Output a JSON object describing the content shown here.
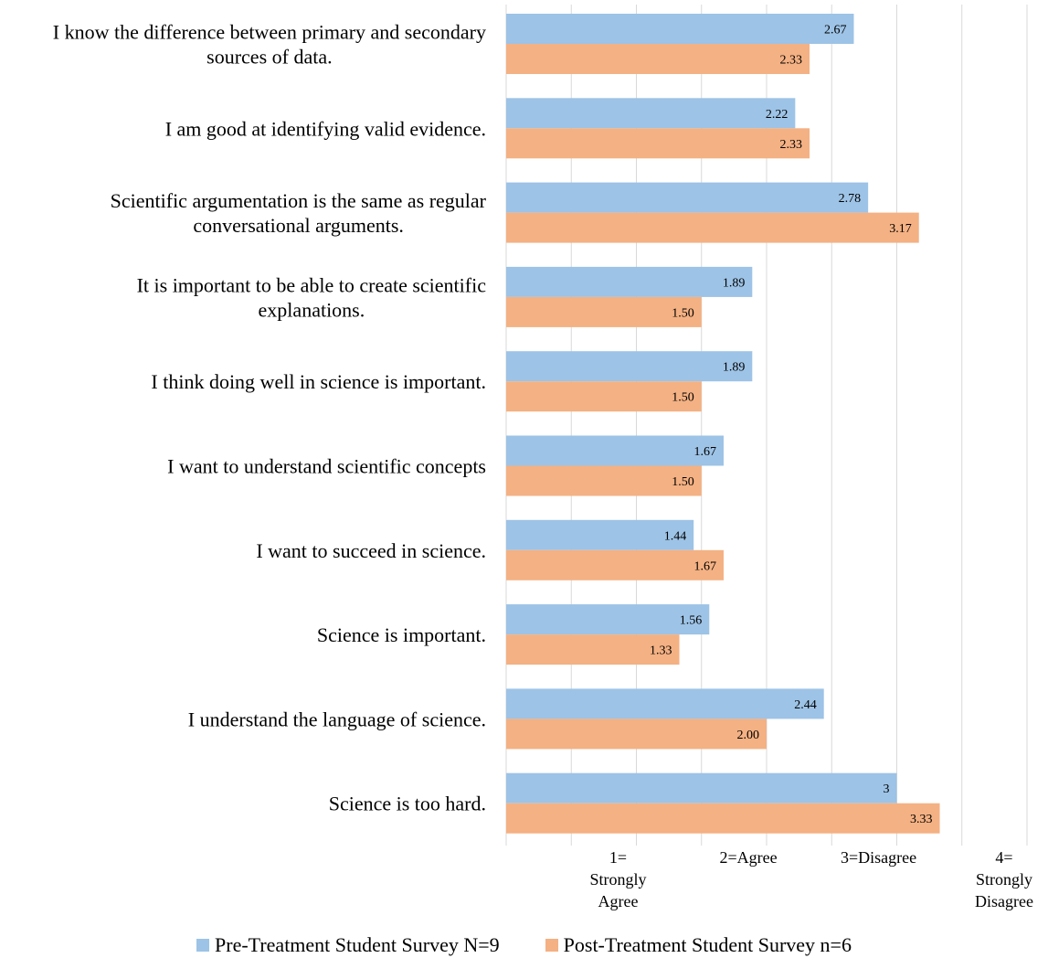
{
  "chart_data": {
    "type": "bar",
    "orientation": "horizontal",
    "categories": [
      "I know the difference between primary and secondary sources of data.",
      "I am good at identifying valid evidence.",
      "Scientific argumentation is the same as regular conversational arguments.",
      "It is important to be able to create scientific explanations.",
      "I think doing well in science is important.",
      "I want to understand scientific concepts",
      "I want to succeed in science.",
      "Science is important.",
      "I understand the language of science.",
      "Science is too hard."
    ],
    "category_lines": [
      [
        "I know the difference between primary and secondary",
        "sources of data."
      ],
      [
        "I am good at identifying valid evidence."
      ],
      [
        "Scientific argumentation is the same as regular",
        "conversational arguments."
      ],
      [
        "It is important to be able to create scientific",
        "explanations."
      ],
      [
        "I think doing well in science is important."
      ],
      [
        "I want to understand scientific concepts"
      ],
      [
        "I want to succeed in science."
      ],
      [
        "Science is important."
      ],
      [
        "I understand the language of science."
      ],
      [
        "Science is too hard."
      ]
    ],
    "series": [
      {
        "name": "Pre-Treatment Student Survey N=9",
        "color": "#9DC3E6",
        "values": [
          2.67,
          2.22,
          2.78,
          1.89,
          1.89,
          1.67,
          1.44,
          1.56,
          2.44,
          3
        ],
        "labels": [
          "2.67",
          "2.22",
          "2.78",
          "1.89",
          "1.89",
          "1.67",
          "1.44",
          "1.56",
          "2.44",
          "3"
        ]
      },
      {
        "name": "Post-Treatment Student Survey n=6",
        "color": "#F4B183",
        "values": [
          2.33,
          2.33,
          3.17,
          1.5,
          1.5,
          1.5,
          1.67,
          1.33,
          2.0,
          3.33
        ],
        "labels": [
          "2.33",
          "2.33",
          "3.17",
          "1.50",
          "1.50",
          "1.50",
          "1.67",
          "1.33",
          "2.00",
          "3.33"
        ]
      }
    ],
    "xlim": [
      0,
      4.0
    ],
    "gridlines": [
      0,
      0.5,
      1,
      1.5,
      2,
      2.5,
      3,
      3.5,
      4
    ],
    "ticks": [
      {
        "value": 1,
        "lines": [
          "1=",
          "Strongly",
          "Agree"
        ]
      },
      {
        "value": 2,
        "lines": [
          "2=Agree"
        ]
      },
      {
        "value": 3,
        "lines": [
          "3=Disagree"
        ]
      },
      {
        "value": 4,
        "lines": [
          "4=",
          "Strongly",
          "Disagree"
        ]
      }
    ],
    "grid": true,
    "legend_position": "bottom"
  }
}
